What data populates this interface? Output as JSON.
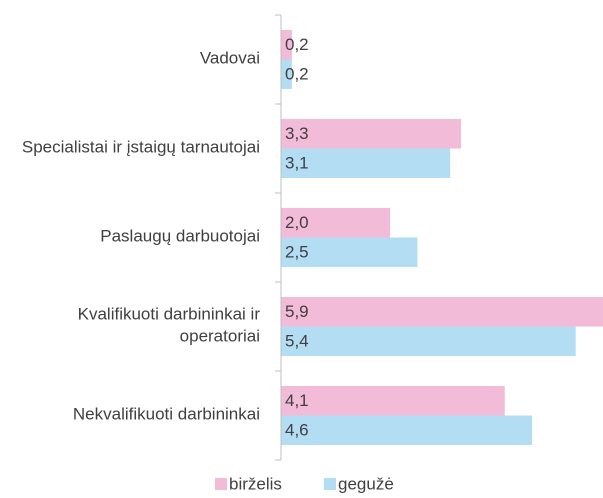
{
  "chart_data": {
    "type": "hbar",
    "categories": [
      "Vadovai",
      "Specialistai ir įstaigų tarnautojai",
      "Paslaugų darbuotojai",
      "Kvalifikuoti darbininkai ir operatoriai",
      "Nekvalifikuoti darbininkai"
    ],
    "series": [
      {
        "name": "birželis",
        "color": "#f2bcd9",
        "values": [
          0.2,
          3.3,
          2.0,
          5.9,
          4.1
        ],
        "value_labels": [
          "0,2",
          "3,3",
          "2,0",
          "5,9",
          "4,1"
        ]
      },
      {
        "name": "gegužė",
        "color": "#b3ddf2",
        "values": [
          0.2,
          3.1,
          2.5,
          5.4,
          4.6
        ],
        "value_labels": [
          "0,2",
          "3,1",
          "2,5",
          "5,4",
          "4,6"
        ]
      }
    ],
    "legend": "bottom"
  }
}
